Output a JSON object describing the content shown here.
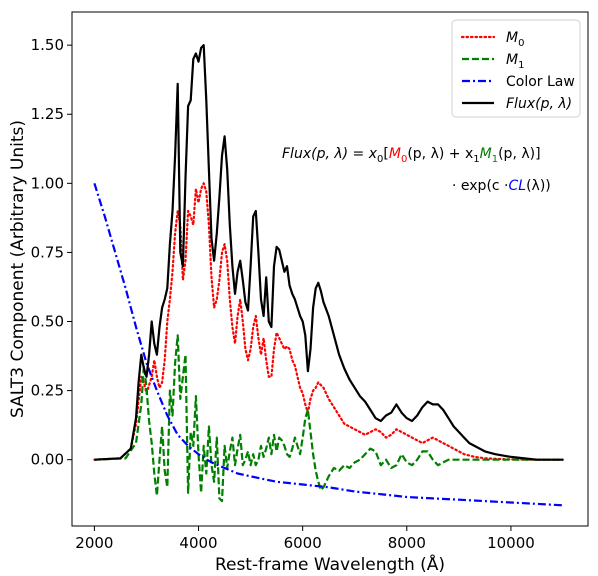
{
  "chart_data": {
    "type": "line",
    "xlabel": "Rest-frame Wavelength (Å)",
    "ylabel": "SALT3 Component (Arbitrary Units)",
    "xlim": [
      1570,
      11480
    ],
    "ylim": [
      -0.24,
      1.62
    ],
    "xticks": [
      2000,
      4000,
      6000,
      8000,
      10000
    ],
    "xtick_labels": [
      "2000",
      "4000",
      "6000",
      "8000",
      "10000"
    ],
    "yticks": [
      0.0,
      0.25,
      0.5,
      0.75,
      1.0,
      1.25,
      1.5
    ],
    "ytick_labels": [
      "0.00",
      "0.25",
      "0.50",
      "0.75",
      "1.00",
      "1.25",
      "1.50"
    ],
    "grid": false,
    "legend_position": "top-right",
    "legend": [
      {
        "label": "M",
        "sub": "0",
        "style": "dotted",
        "color": "#ff0000"
      },
      {
        "label": "M",
        "sub": "1",
        "style": "dashed",
        "color": "#008000"
      },
      {
        "label": "Color Law",
        "style": "dashdot",
        "color": "#0000ff"
      },
      {
        "label": "Flux(p, λ)",
        "style": "solid",
        "color": "#000000"
      }
    ],
    "annotation": {
      "line1": [
        "Flux(p, λ) = x",
        "0",
        "[",
        "M",
        "0",
        "(p, λ) + x",
        "1",
        "M",
        "1",
        "(p, λ)]"
      ],
      "line2": [
        "· exp(c ·",
        "CL",
        "(λ))"
      ]
    },
    "series": [
      {
        "name": "M0",
        "color": "#ff0000",
        "style": "dotted",
        "x": [
          2000,
          2500,
          2700,
          2800,
          2900,
          2950,
          3000,
          3100,
          3150,
          3200,
          3250,
          3300,
          3350,
          3400,
          3450,
          3500,
          3550,
          3600,
          3650,
          3700,
          3750,
          3800,
          3850,
          3900,
          3950,
          4000,
          4050,
          4100,
          4150,
          4200,
          4250,
          4300,
          4350,
          4400,
          4450,
          4500,
          4550,
          4600,
          4650,
          4700,
          4750,
          4800,
          4850,
          4900,
          4950,
          5000,
          5050,
          5100,
          5150,
          5200,
          5250,
          5300,
          5350,
          5400,
          5450,
          5500,
          5550,
          5600,
          5650,
          5700,
          5750,
          5800,
          5850,
          5900,
          5950,
          6000,
          6050,
          6100,
          6150,
          6200,
          6250,
          6300,
          6350,
          6400,
          6500,
          6600,
          6700,
          6800,
          6900,
          7000,
          7100,
          7200,
          7300,
          7400,
          7500,
          7600,
          7700,
          7800,
          7900,
          8000,
          8100,
          8200,
          8300,
          8400,
          8500,
          8600,
          8700,
          8800,
          8900,
          9000,
          9100,
          9200,
          9300,
          9400,
          9500,
          9700,
          10000,
          10500,
          11000
        ],
        "y": [
          0.0,
          0.005,
          0.04,
          0.13,
          0.3,
          0.28,
          0.24,
          0.3,
          0.36,
          0.3,
          0.26,
          0.28,
          0.36,
          0.5,
          0.58,
          0.68,
          0.82,
          0.9,
          0.85,
          0.65,
          0.72,
          0.9,
          0.88,
          0.85,
          0.98,
          0.93,
          0.98,
          1.0,
          0.97,
          0.85,
          0.66,
          0.55,
          0.58,
          0.65,
          0.75,
          0.78,
          0.72,
          0.58,
          0.48,
          0.42,
          0.52,
          0.58,
          0.5,
          0.4,
          0.36,
          0.4,
          0.48,
          0.52,
          0.44,
          0.38,
          0.44,
          0.36,
          0.3,
          0.3,
          0.4,
          0.46,
          0.44,
          0.42,
          0.4,
          0.41,
          0.4,
          0.36,
          0.34,
          0.3,
          0.26,
          0.24,
          0.2,
          0.17,
          0.22,
          0.25,
          0.26,
          0.28,
          0.27,
          0.26,
          0.22,
          0.19,
          0.16,
          0.13,
          0.12,
          0.11,
          0.1,
          0.09,
          0.1,
          0.11,
          0.1,
          0.08,
          0.09,
          0.11,
          0.1,
          0.09,
          0.08,
          0.07,
          0.06,
          0.07,
          0.08,
          0.07,
          0.06,
          0.05,
          0.04,
          0.03,
          0.02,
          0.015,
          0.01,
          0.008,
          0.005,
          0.003,
          0.001,
          0.0,
          0.0
        ]
      },
      {
        "name": "M1",
        "color": "#008000",
        "style": "dashed",
        "x": [
          2000,
          2600,
          2800,
          2900,
          2950,
          3000,
          3050,
          3100,
          3150,
          3200,
          3250,
          3300,
          3350,
          3400,
          3450,
          3500,
          3550,
          3600,
          3650,
          3700,
          3750,
          3800,
          3850,
          3900,
          3950,
          4000,
          4050,
          4100,
          4150,
          4200,
          4250,
          4300,
          4350,
          4400,
          4450,
          4500,
          4550,
          4600,
          4650,
          4700,
          4750,
          4800,
          4850,
          4900,
          4950,
          5000,
          5050,
          5100,
          5150,
          5200,
          5250,
          5300,
          5350,
          5400,
          5450,
          5500,
          5550,
          5600,
          5650,
          5700,
          5750,
          5800,
          5850,
          5900,
          5950,
          6000,
          6050,
          6100,
          6150,
          6200,
          6250,
          6300,
          6350,
          6400,
          6500,
          6600,
          6700,
          6800,
          6900,
          7000,
          7100,
          7200,
          7300,
          7400,
          7500,
          7600,
          7700,
          7800,
          7900,
          8000,
          8100,
          8200,
          8300,
          8400,
          8500,
          8600,
          8700,
          8800,
          9000,
          9500,
          10000,
          11000
        ],
        "y": [
          0.0,
          0.005,
          0.06,
          0.2,
          0.34,
          0.26,
          0.14,
          0.06,
          -0.05,
          -0.13,
          0.0,
          0.12,
          -0.04,
          -0.1,
          0.25,
          0.16,
          0.35,
          0.45,
          0.22,
          0.3,
          0.38,
          -0.12,
          0.1,
          0.05,
          0.23,
          0.02,
          -0.12,
          0.05,
          -0.05,
          0.12,
          -0.02,
          -0.08,
          0.08,
          -0.14,
          -0.15,
          0.05,
          -0.03,
          0.03,
          0.08,
          -0.02,
          0.04,
          0.09,
          -0.02,
          0.0,
          0.03,
          -0.02,
          0.02,
          -0.02,
          0.0,
          0.05,
          0.01,
          0.04,
          0.08,
          0.02,
          0.09,
          0.03,
          0.08,
          0.07,
          0.05,
          0.02,
          0.01,
          0.04,
          0.08,
          0.05,
          0.02,
          0.08,
          0.15,
          0.18,
          0.1,
          0.02,
          -0.04,
          -0.08,
          -0.11,
          -0.1,
          -0.06,
          -0.03,
          -0.04,
          -0.02,
          -0.03,
          -0.01,
          0.0,
          0.02,
          0.04,
          0.03,
          -0.02,
          0.0,
          -0.03,
          -0.02,
          0.02,
          -0.01,
          -0.02,
          0.0,
          0.03,
          0.03,
          0.0,
          -0.02,
          -0.01,
          0.0,
          0.0,
          0.0,
          0.0,
          0.0
        ]
      },
      {
        "name": "Color Law",
        "color": "#0000ff",
        "style": "dashdot",
        "x": [
          2000,
          2200,
          2400,
          2600,
          2800,
          3000,
          3200,
          3400,
          3600,
          3800,
          4000,
          4250,
          4500,
          4750,
          5000,
          5500,
          6000,
          6500,
          7000,
          7500,
          8000,
          8500,
          9000,
          9500,
          10000,
          10500,
          11000
        ],
        "y": [
          1.0,
          0.88,
          0.75,
          0.62,
          0.48,
          0.35,
          0.25,
          0.16,
          0.09,
          0.05,
          0.02,
          -0.01,
          -0.03,
          -0.05,
          -0.06,
          -0.08,
          -0.09,
          -0.1,
          -0.115,
          -0.125,
          -0.135,
          -0.14,
          -0.145,
          -0.15,
          -0.155,
          -0.16,
          -0.165
        ]
      },
      {
        "name": "Flux(p, λ)",
        "color": "#000000",
        "style": "solid",
        "x": [
          2000,
          2500,
          2700,
          2800,
          2850,
          2900,
          2950,
          3000,
          3050,
          3100,
          3150,
          3200,
          3250,
          3300,
          3350,
          3400,
          3450,
          3500,
          3550,
          3600,
          3650,
          3700,
          3750,
          3800,
          3850,
          3900,
          3950,
          4000,
          4050,
          4100,
          4150,
          4200,
          4250,
          4300,
          4350,
          4400,
          4450,
          4500,
          4550,
          4600,
          4650,
          4700,
          4750,
          4800,
          4850,
          4900,
          4950,
          5000,
          5050,
          5100,
          5150,
          5200,
          5250,
          5300,
          5350,
          5400,
          5450,
          5500,
          5550,
          5600,
          5650,
          5700,
          5750,
          5800,
          5850,
          5900,
          5950,
          6000,
          6050,
          6100,
          6150,
          6200,
          6250,
          6300,
          6350,
          6400,
          6500,
          6600,
          6700,
          6800,
          6900,
          7000,
          7100,
          7200,
          7300,
          7400,
          7500,
          7600,
          7700,
          7800,
          7900,
          8000,
          8100,
          8200,
          8300,
          8400,
          8500,
          8600,
          8700,
          8800,
          8900,
          9000,
          9100,
          9200,
          9300,
          9400,
          9500,
          9700,
          10000,
          10500,
          11000
        ],
        "y": [
          0.0,
          0.005,
          0.04,
          0.15,
          0.28,
          0.38,
          0.33,
          0.3,
          0.38,
          0.5,
          0.42,
          0.38,
          0.48,
          0.55,
          0.58,
          0.62,
          0.78,
          0.9,
          1.1,
          1.36,
          0.75,
          0.7,
          1.02,
          1.28,
          1.3,
          1.45,
          1.47,
          1.44,
          1.49,
          1.5,
          1.3,
          1.05,
          0.8,
          0.72,
          0.82,
          0.95,
          1.1,
          1.17,
          1.05,
          0.85,
          0.7,
          0.6,
          0.68,
          0.72,
          0.65,
          0.57,
          0.54,
          0.7,
          0.88,
          0.9,
          0.75,
          0.58,
          0.52,
          0.66,
          0.5,
          0.48,
          0.7,
          0.77,
          0.76,
          0.72,
          0.68,
          0.7,
          0.63,
          0.6,
          0.58,
          0.55,
          0.52,
          0.5,
          0.45,
          0.32,
          0.4,
          0.55,
          0.62,
          0.64,
          0.61,
          0.57,
          0.52,
          0.45,
          0.38,
          0.33,
          0.29,
          0.26,
          0.23,
          0.21,
          0.18,
          0.15,
          0.14,
          0.16,
          0.17,
          0.2,
          0.17,
          0.15,
          0.14,
          0.16,
          0.19,
          0.21,
          0.2,
          0.2,
          0.18,
          0.15,
          0.12,
          0.1,
          0.08,
          0.06,
          0.05,
          0.04,
          0.03,
          0.02,
          0.01,
          0.0,
          0.0
        ]
      }
    ]
  }
}
